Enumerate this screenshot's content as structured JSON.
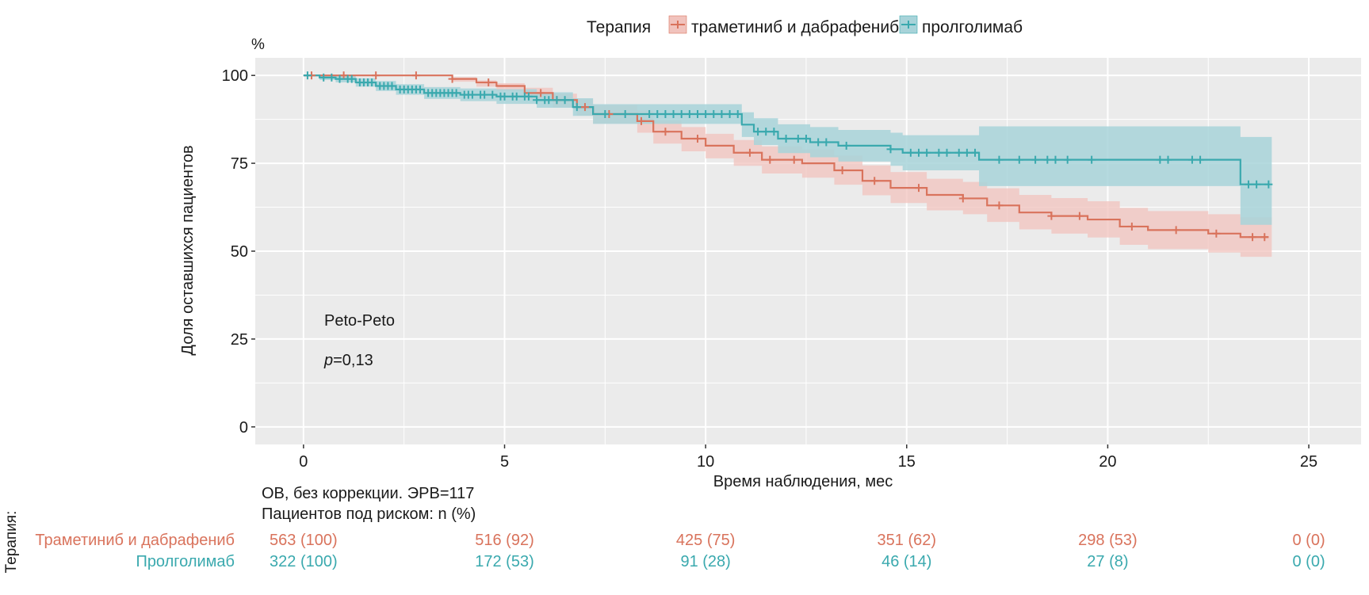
{
  "chart_data": {
    "type": "line",
    "subtype": "kaplan-meier",
    "ylabel": "Доля оставшихся пациентов",
    "y_unit": "%",
    "xlabel": "Время наблюдения, мес",
    "xlim": [
      -1.2,
      26.3
    ],
    "ylim": [
      -5,
      105
    ],
    "x_ticks": [
      0,
      5,
      10,
      15,
      20,
      25
    ],
    "y_ticks": [
      0,
      25,
      50,
      75,
      100
    ],
    "grid": true,
    "legend": {
      "title": "Терапия",
      "position": "top",
      "entries": [
        "траметиниб и дабрафениб",
        "пролголимаб"
      ]
    },
    "annotation": {
      "method": "Peto-Peto",
      "p_label": "p",
      "p_value": "=0,13"
    },
    "series": [
      {
        "name": "траметиниб и дабрафениб",
        "color": "#d9735c",
        "band_color": "#f1c3bd",
        "steps": [
          [
            0,
            100
          ],
          [
            3.7,
            99
          ],
          [
            4.3,
            98
          ],
          [
            4.8,
            97
          ],
          [
            5.5,
            95
          ],
          [
            6.2,
            93
          ],
          [
            6.8,
            91
          ],
          [
            7.2,
            89
          ],
          [
            8.3,
            87
          ],
          [
            8.7,
            84
          ],
          [
            9.4,
            82
          ],
          [
            10.0,
            80
          ],
          [
            10.7,
            78
          ],
          [
            11.4,
            76
          ],
          [
            12.4,
            75
          ],
          [
            13.2,
            73
          ],
          [
            13.9,
            70
          ],
          [
            14.6,
            68
          ],
          [
            15.5,
            66
          ],
          [
            16.4,
            65
          ],
          [
            17.0,
            63
          ],
          [
            17.8,
            61
          ],
          [
            18.6,
            60
          ],
          [
            19.5,
            59
          ],
          [
            20.3,
            57
          ],
          [
            21.0,
            56
          ],
          [
            22.5,
            55
          ],
          [
            23.3,
            54
          ],
          [
            24.0,
            54
          ]
        ],
        "ci": [
          [
            0,
            100,
            100
          ],
          [
            3.7,
            99.5,
            98.2
          ],
          [
            4.3,
            98.6,
            96.8
          ],
          [
            4.8,
            97.8,
            95.6
          ],
          [
            5.5,
            96.5,
            93.2
          ],
          [
            6.2,
            94.8,
            90.9
          ],
          [
            6.8,
            93.2,
            88.6
          ],
          [
            7.2,
            91.6,
            86.3
          ],
          [
            8.3,
            90.0,
            83.7
          ],
          [
            8.7,
            87.2,
            80.6
          ],
          [
            9.4,
            85.3,
            78.4
          ],
          [
            10.0,
            83.4,
            76.4
          ],
          [
            10.7,
            81.6,
            74.3
          ],
          [
            11.4,
            79.8,
            72.1
          ],
          [
            12.4,
            78.9,
            70.9
          ],
          [
            13.2,
            77.2,
            68.9
          ],
          [
            13.9,
            74.4,
            65.9
          ],
          [
            14.6,
            72.5,
            63.7
          ],
          [
            15.5,
            70.6,
            61.6
          ],
          [
            16.4,
            69.7,
            60.5
          ],
          [
            17.0,
            67.9,
            58.3
          ],
          [
            17.8,
            66.0,
            56.2
          ],
          [
            18.6,
            65.1,
            55.0
          ],
          [
            19.5,
            64.2,
            53.9
          ],
          [
            20.3,
            62.3,
            51.8
          ],
          [
            21.0,
            61.4,
            50.6
          ],
          [
            22.5,
            60.5,
            49.6
          ],
          [
            23.3,
            59.6,
            48.4
          ],
          [
            24.0,
            59.6,
            48.4
          ]
        ],
        "censor_x": [
          0.2,
          1.0,
          1.8,
          2.8,
          3.7,
          4.6,
          5.9,
          6.3,
          7.0,
          7.6,
          8.4,
          9.0,
          9.8,
          11.1,
          11.6,
          12.2,
          13.4,
          14.2,
          15.3,
          16.4,
          17.3,
          18.6,
          19.3,
          20.6,
          21.7,
          22.7,
          23.6,
          23.9
        ]
      },
      {
        "name": "пролголимаб",
        "color": "#3aa9ae",
        "band_color": "#a8d3d9",
        "steps": [
          [
            0,
            100
          ],
          [
            0.4,
            99.4
          ],
          [
            0.8,
            99
          ],
          [
            1.3,
            98
          ],
          [
            1.8,
            97
          ],
          [
            2.3,
            96
          ],
          [
            3.0,
            95
          ],
          [
            3.9,
            94.5
          ],
          [
            4.8,
            94
          ],
          [
            5.8,
            93
          ],
          [
            6.7,
            91
          ],
          [
            7.2,
            89
          ],
          [
            10.9,
            86
          ],
          [
            11.2,
            84
          ],
          [
            11.8,
            82
          ],
          [
            12.6,
            81
          ],
          [
            13.3,
            80
          ],
          [
            14.6,
            79
          ],
          [
            14.9,
            78
          ],
          [
            16.8,
            76
          ],
          [
            23.3,
            69
          ],
          [
            24.0,
            69
          ]
        ],
        "ci": [
          [
            0,
            100,
            100
          ],
          [
            0.4,
            100,
            98.7
          ],
          [
            0.8,
            99.9,
            98.0
          ],
          [
            1.3,
            99.2,
            96.8
          ],
          [
            1.8,
            98.4,
            95.6
          ],
          [
            2.3,
            97.5,
            94.5
          ],
          [
            3.0,
            96.7,
            93.3
          ],
          [
            3.9,
            96.3,
            92.7
          ],
          [
            4.8,
            96.1,
            91.9
          ],
          [
            5.8,
            95.2,
            90.8
          ],
          [
            6.7,
            93.5,
            88.5
          ],
          [
            7.2,
            91.8,
            86.2
          ],
          [
            10.9,
            89.5,
            82.5
          ],
          [
            11.2,
            87.8,
            80.2
          ],
          [
            11.8,
            86.1,
            77.9
          ],
          [
            12.6,
            85.3,
            76.7
          ],
          [
            13.3,
            84.5,
            75.5
          ],
          [
            14.6,
            83.7,
            74.3
          ],
          [
            14.9,
            83.0,
            73.0
          ],
          [
            16.8,
            85.5,
            68.5
          ],
          [
            23.3,
            82.5,
            57.5
          ],
          [
            24.0,
            82.5,
            57.5
          ]
        ],
        "censor_x": [
          0.1,
          0.5,
          0.7,
          0.9,
          1.1,
          1.2,
          1.4,
          1.5,
          1.6,
          1.7,
          1.9,
          2.0,
          2.1,
          2.2,
          2.4,
          2.5,
          2.6,
          2.7,
          2.8,
          2.9,
          3.1,
          3.2,
          3.3,
          3.4,
          3.5,
          3.6,
          3.7,
          3.8,
          4.0,
          4.1,
          4.2,
          4.4,
          4.5,
          4.7,
          4.9,
          5.0,
          5.2,
          5.3,
          5.5,
          5.6,
          5.8,
          6.0,
          6.1,
          6.3,
          6.5,
          6.8,
          7.5,
          8.0,
          8.6,
          8.8,
          9.0,
          9.2,
          9.4,
          9.6,
          9.8,
          10.0,
          10.2,
          10.4,
          10.6,
          10.8,
          11.3,
          11.5,
          11.7,
          12.0,
          12.3,
          12.5,
          12.8,
          13.0,
          13.5,
          14.6,
          15.1,
          15.3,
          15.5,
          15.8,
          16.0,
          16.3,
          16.5,
          16.7,
          17.3,
          17.8,
          18.2,
          18.5,
          18.7,
          19.0,
          19.6,
          21.3,
          21.5,
          22.1,
          22.3,
          23.5,
          23.7,
          24.0
        ]
      }
    ]
  },
  "risk_table": {
    "axis_label": "Терапия:",
    "caption_1": "ОВ, без коррекции. ЭРВ=117",
    "caption_2": "Пациентов под риском: n (%)",
    "rows": [
      {
        "name": "Траметиниб и дабрафениб",
        "color": "#d9735c",
        "values": [
          "563 (100)",
          "516 (92)",
          "425 (75)",
          "351 (62)",
          "298 (53)",
          "0 (0)"
        ]
      },
      {
        "name": "Пролголимаб",
        "color": "#3aa9ae",
        "values": [
          "322 (100)",
          "172 (53)",
          "91 (28)",
          "46 (14)",
          "27 (8)",
          "0 (0)"
        ]
      }
    ]
  }
}
